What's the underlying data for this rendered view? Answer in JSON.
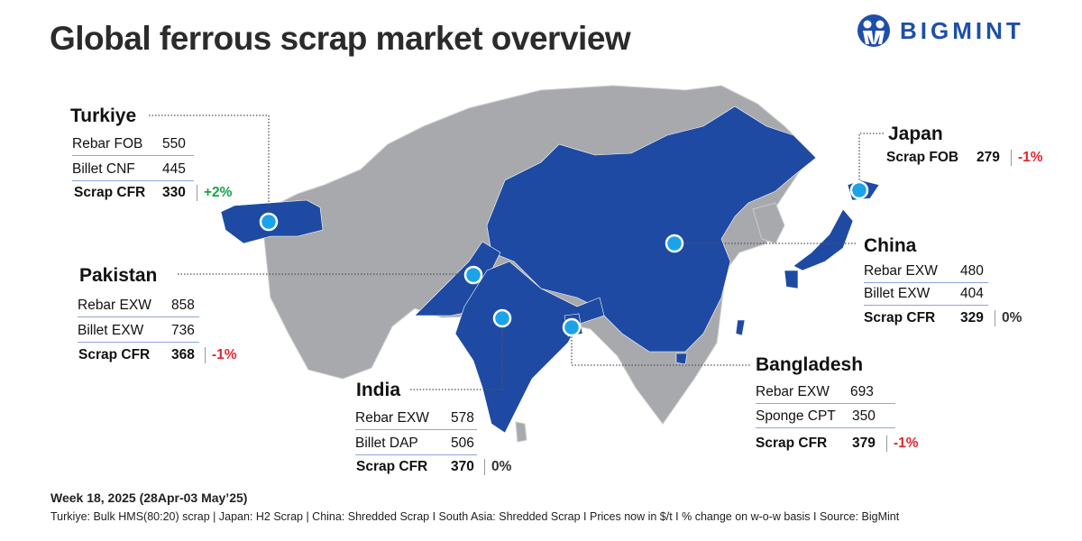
{
  "title": "Global ferrous scrap market overview",
  "logo": {
    "text": "BIGMINT",
    "color": "#1e4fa8"
  },
  "colors": {
    "highlight_country": "#1e4aa3",
    "land": "#a8a9ad",
    "marker": "#1aa3e8",
    "positive": "#1aa34a",
    "negative": "#e3262f"
  },
  "countries": {
    "turkiye": {
      "name": "Turkiye",
      "rows": [
        {
          "label": "Rebar FOB",
          "value": "550"
        },
        {
          "label": "Billet CNF",
          "value": "445"
        },
        {
          "label": "Scrap CFR",
          "value": "330",
          "change": "+2%"
        }
      ]
    },
    "pakistan": {
      "name": "Pakistan",
      "rows": [
        {
          "label": "Rebar EXW",
          "value": "858"
        },
        {
          "label": "Billet EXW",
          "value": "736"
        },
        {
          "label": "Scrap CFR",
          "value": "368",
          "change": "-1%"
        }
      ]
    },
    "india": {
      "name": "India",
      "rows": [
        {
          "label": "Rebar EXW",
          "value": "578"
        },
        {
          "label": "Billet DAP",
          "value": "506"
        },
        {
          "label": "Scrap CFR",
          "value": "370",
          "change": "0%"
        }
      ]
    },
    "china": {
      "name": "China",
      "rows": [
        {
          "label": "Rebar EXW",
          "value": "480"
        },
        {
          "label": "Billet EXW",
          "value": "404"
        },
        {
          "label": "Scrap CFR",
          "value": "329",
          "change": "0%"
        }
      ]
    },
    "japan": {
      "name": "Japan",
      "rows": [
        {
          "label": "Scrap FOB",
          "value": "279",
          "change": "-1%"
        }
      ]
    },
    "bangladesh": {
      "name": "Bangladesh",
      "rows": [
        {
          "label": "Rebar EXW",
          "value": "693"
        },
        {
          "label": "Sponge CPT",
          "value": "350"
        },
        {
          "label": "Scrap CFR",
          "value": "379",
          "change": "-1%"
        }
      ]
    }
  },
  "footer": {
    "week": "Week 18, 2025 (28Apr-03 May’25)",
    "notes": "Turkiye: Bulk HMS(80:20) scrap | Japan: H2 Scrap | China: Shredded Scrap  I  South Asia: Shredded Scrap  I  Prices now in $/t  I  % change on w-o-w basis  I  Source: BigMint"
  }
}
